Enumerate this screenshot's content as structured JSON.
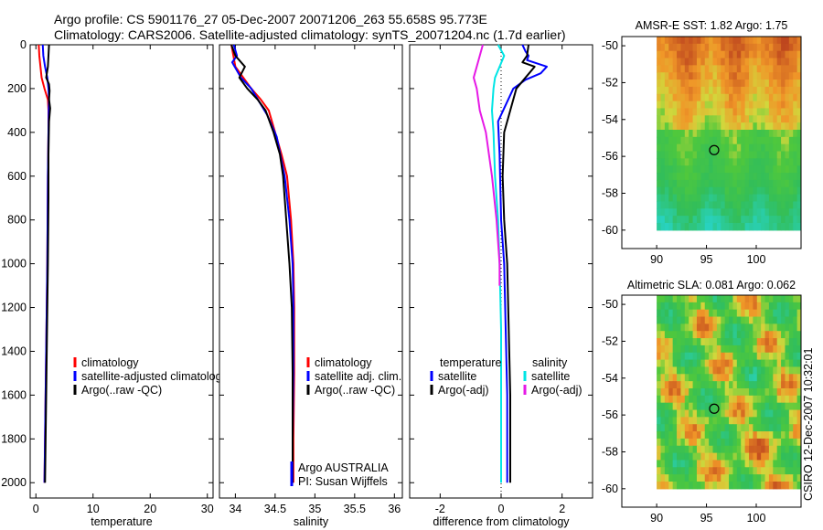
{
  "header": {
    "line1": "Argo profile: CS 5901176_27 05-Dec-2007 20071206_263 55.658S 95.773E",
    "line2": "Climatology: CARS2006. Satellite-adjusted climatology: synTS_20071204.nc (1.7d earlier)"
  },
  "credit": "CSIRO 12-Dec-2007 10:32:01",
  "colors": {
    "climatology": "#ff0000",
    "satellite": "#0000ff",
    "argo": "#000000",
    "satellite_salinity": "#00e5e5",
    "argo_adj_salinity": "#e619e6"
  },
  "chart_data": [
    {
      "type": "line",
      "id": "temperature",
      "xlabel": "temperature",
      "xlim": [
        -1,
        31
      ],
      "xticks": [
        0,
        10,
        20,
        30
      ],
      "ylim": [
        2070,
        0
      ],
      "yticks": [
        0,
        200,
        400,
        600,
        800,
        1000,
        1200,
        1400,
        1600,
        1800,
        2000
      ],
      "legend_placement": "lower-middle",
      "legend": [
        "climatology",
        "satellite-adjusted climatology",
        "Argo(..raw -QC)"
      ],
      "series": [
        {
          "name": "climatology",
          "color": "#ff0000",
          "x": [
            0.5,
            0.6,
            0.8,
            1.0,
            1.5,
            2.1,
            2.2,
            2.2,
            2.1,
            2.05,
            2.0,
            1.9,
            1.8,
            1.7,
            1.6,
            1.5
          ],
          "y": [
            0,
            50,
            100,
            150,
            200,
            250,
            300,
            400,
            600,
            800,
            1000,
            1200,
            1400,
            1600,
            1800,
            2000
          ]
        },
        {
          "name": "satellite-adjusted climatology",
          "color": "#0000ff",
          "x": [
            1.2,
            1.3,
            1.6,
            2.0,
            2.2,
            2.3,
            2.25,
            2.2,
            2.1,
            2.05,
            2.0,
            1.9,
            1.8,
            1.7,
            1.6,
            1.5
          ],
          "y": [
            0,
            50,
            100,
            150,
            200,
            250,
            300,
            400,
            600,
            800,
            1000,
            1200,
            1400,
            1600,
            1800,
            2000
          ]
        },
        {
          "name": "Argo(..raw -QC)",
          "color": "#000000",
          "x": [
            2.3,
            2.2,
            2.1,
            1.8,
            2.3,
            2.4,
            2.3,
            2.5,
            2.3,
            2.2,
            2.2,
            2.1,
            2.0,
            1.9,
            1.8,
            1.7,
            1.6
          ],
          "y": [
            0,
            50,
            100,
            150,
            180,
            210,
            250,
            290,
            350,
            500,
            700,
            1000,
            1200,
            1400,
            1600,
            1800,
            2000
          ]
        }
      ]
    },
    {
      "type": "line",
      "id": "salinity",
      "xlabel": "salinity",
      "xlim": [
        33.8,
        36.1
      ],
      "xticks": [
        34,
        34.5,
        35,
        35.5,
        36
      ],
      "ylim": [
        2070,
        0
      ],
      "legend_placement": "lower-right",
      "legend": [
        "climatology",
        "satellite adj. clim.",
        "Argo(..raw -QC)"
      ],
      "annotation": [
        "Argo AUSTRALIA",
        "PI: Susan Wijffels"
      ],
      "series": [
        {
          "name": "climatology",
          "color": "#ff0000",
          "x": [
            33.95,
            34.0,
            34.1,
            34.2,
            34.32,
            34.42,
            34.5,
            34.58,
            34.65,
            34.7,
            34.73,
            34.74,
            34.74,
            34.73,
            34.73
          ],
          "y": [
            0,
            100,
            150,
            200,
            250,
            300,
            400,
            500,
            600,
            800,
            1000,
            1200,
            1500,
            1800,
            2000
          ]
        },
        {
          "name": "satellite adj. clim.",
          "color": "#0000ff",
          "x": [
            33.98,
            34.02,
            33.96,
            34.07,
            34.2,
            34.3,
            34.4,
            34.52,
            34.62,
            34.68,
            34.72,
            34.73,
            34.73,
            34.72,
            34.72
          ],
          "y": [
            0,
            50,
            80,
            150,
            200,
            260,
            320,
            420,
            600,
            800,
            1000,
            1200,
            1500,
            1800,
            2000
          ]
        },
        {
          "name": "Argo(..raw -QC)",
          "color": "#000000",
          "x": [
            33.95,
            34.0,
            34.12,
            34.05,
            34.15,
            34.28,
            34.38,
            34.48,
            34.56,
            34.6,
            34.64,
            34.68,
            34.71,
            34.72,
            34.72,
            34.72
          ],
          "y": [
            0,
            50,
            100,
            150,
            200,
            250,
            300,
            400,
            500,
            600,
            800,
            1000,
            1200,
            1500,
            1800,
            2000
          ]
        }
      ]
    },
    {
      "type": "line",
      "id": "difference",
      "xlabel": "difference from climatology",
      "xlim": [
        -3,
        3
      ],
      "xticks": [
        -2,
        0,
        2
      ],
      "ylim": [
        2070,
        0
      ],
      "legend_placement": "lower-middle",
      "legend_headers": [
        "temperature",
        "salinity"
      ],
      "legend": [
        "satellite",
        "Argo(-adj)",
        "satellite",
        "Argo(-adj)"
      ],
      "series": [
        {
          "name": "temperature satellite",
          "color": "#0000ff",
          "x": [
            0.7,
            0.8,
            0.9,
            0.85,
            1.5,
            1.3,
            0.8,
            0.4,
            -0.1,
            -0.05,
            0.0,
            0.1,
            0.15,
            0.2,
            0.2,
            0.2
          ],
          "y": [
            0,
            30,
            50,
            70,
            100,
            130,
            160,
            200,
            350,
            500,
            800,
            1000,
            1300,
            1600,
            1800,
            2000
          ]
        },
        {
          "name": "temperature Argo(-adj)",
          "color": "#000000",
          "x": [
            0.9,
            0.85,
            0.7,
            1.1,
            0.8,
            0.5,
            0.4,
            0.3,
            0.1,
            0.05,
            0.1,
            0.2,
            0.25,
            0.3,
            0.3,
            0.3
          ],
          "y": [
            0,
            50,
            80,
            100,
            150,
            200,
            250,
            300,
            400,
            600,
            800,
            1000,
            1300,
            1600,
            1800,
            2000
          ]
        },
        {
          "name": "salinity satellite",
          "color": "#00e5e5",
          "x": [
            -0.1,
            0.1,
            -0.05,
            -0.2,
            -0.25,
            -0.3,
            -0.25,
            -0.2,
            -0.1,
            -0.05,
            0.0,
            0.0,
            0.0
          ],
          "y": [
            0,
            50,
            100,
            150,
            200,
            300,
            400,
            600,
            800,
            1000,
            1300,
            1600,
            2000
          ]
        },
        {
          "name": "salinity Argo(-adj)",
          "color": "#e619e6",
          "x": [
            -0.6,
            -0.7,
            -0.9,
            -0.8,
            -0.7,
            -0.5,
            -0.3,
            -0.15,
            -0.05,
            -0.05
          ],
          "y": [
            0,
            50,
            150,
            200,
            300,
            400,
            600,
            800,
            1000,
            1100
          ]
        }
      ]
    },
    {
      "type": "heatmap",
      "id": "sst_map",
      "title": "AMSR-E SST: 1.82 Argo: 1.75",
      "xlim": [
        86.5,
        104.5
      ],
      "ylim": [
        -61,
        -49.5
      ],
      "xticks": [
        90,
        95,
        100
      ],
      "yticks": [
        -50,
        -52,
        -54,
        -56,
        -58,
        -60
      ],
      "grid_extent": {
        "lon": [
          90,
          104.5
        ],
        "lat": [
          -60,
          -49.5
        ]
      },
      "marker": {
        "lon": 95.773,
        "lat": -55.658
      }
    },
    {
      "type": "heatmap",
      "id": "sla_map",
      "title": "Altimetric SLA: 0.081 Argo: 0.062",
      "xlim": [
        86.5,
        104.5
      ],
      "ylim": [
        -61,
        -49.5
      ],
      "xticks": [
        90,
        95,
        100
      ],
      "yticks": [
        -50,
        -52,
        -54,
        -56,
        -58,
        -60
      ],
      "grid_extent": {
        "lon": [
          90,
          104.5
        ],
        "lat": [
          -60,
          -49.5
        ]
      },
      "marker": {
        "lon": 95.773,
        "lat": -55.658
      }
    }
  ]
}
